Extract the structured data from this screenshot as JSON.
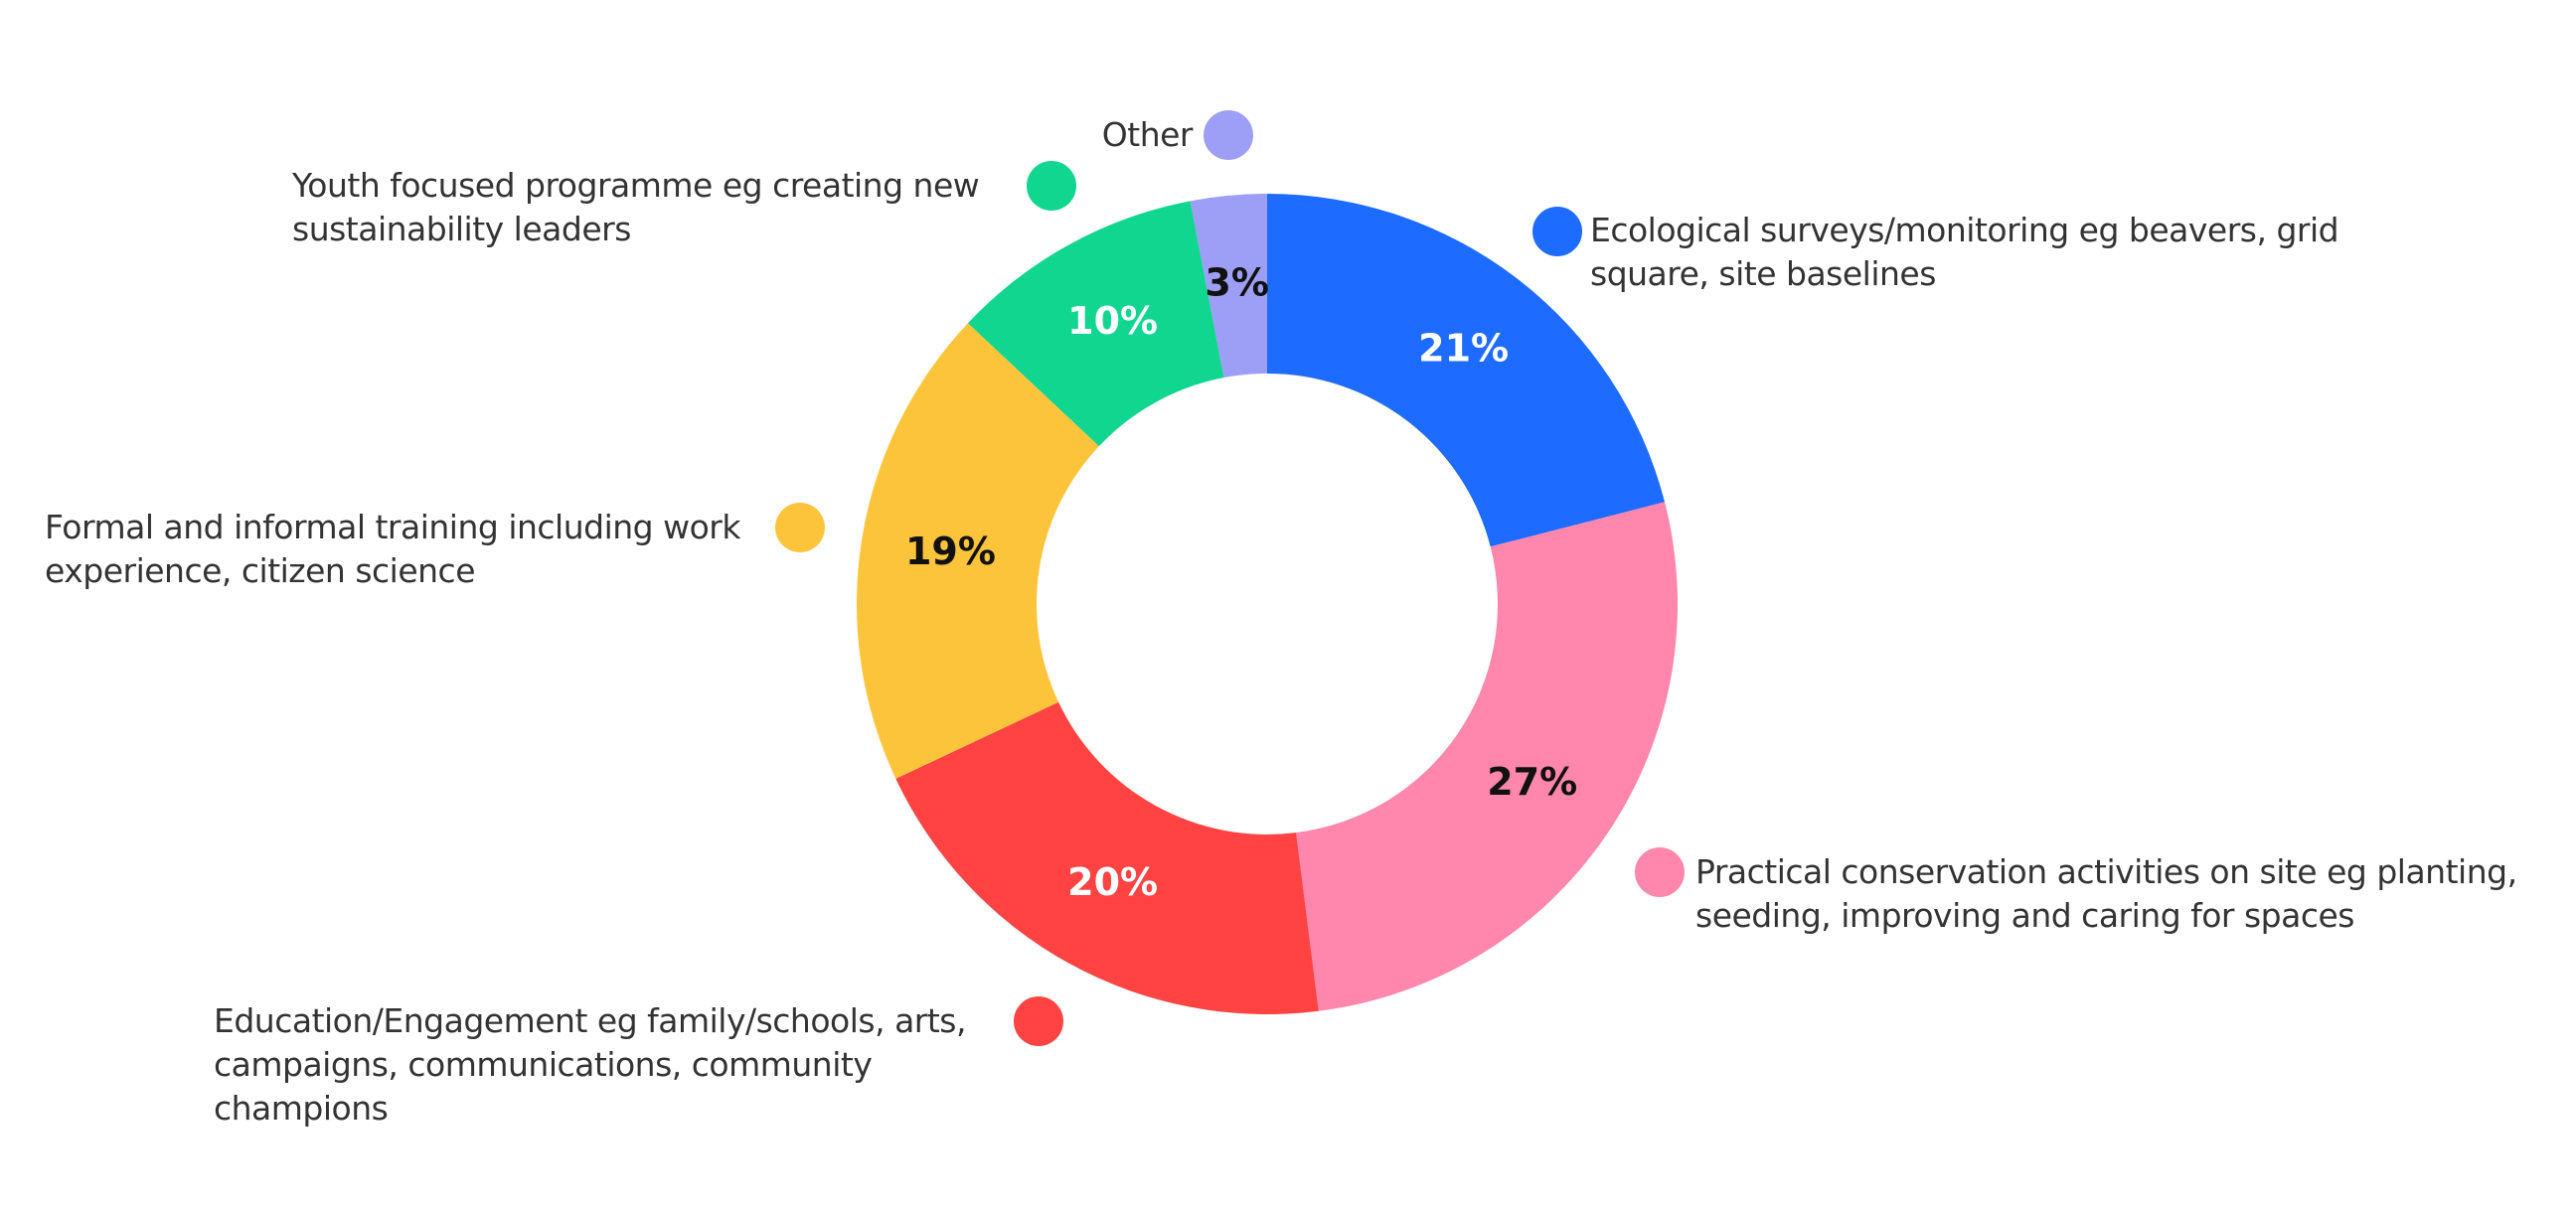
{
  "chart_data": {
    "type": "donut",
    "categories": [
      "Ecological surveys/monitoring eg beavers, grid square, site baselines",
      "Practical conservation activities on site eg planting, seeding, improving and caring for spaces",
      "Education/Engagement eg family/schools, arts, campaigns, communications, community champions",
      "Formal and informal training including work experience, citizen science",
      "Youth focused programme eg creating new sustainability leaders",
      "Other"
    ],
    "values": [
      21,
      27,
      20,
      19,
      10,
      3
    ],
    "value_labels": [
      "21%",
      "27%",
      "20%",
      "19%",
      "10%",
      "3%"
    ],
    "colors": [
      "#1e6bff",
      "#ff86ac",
      "#ff4242",
      "#fcc43b",
      "#10d68f",
      "#9d9ef5"
    ]
  }
}
